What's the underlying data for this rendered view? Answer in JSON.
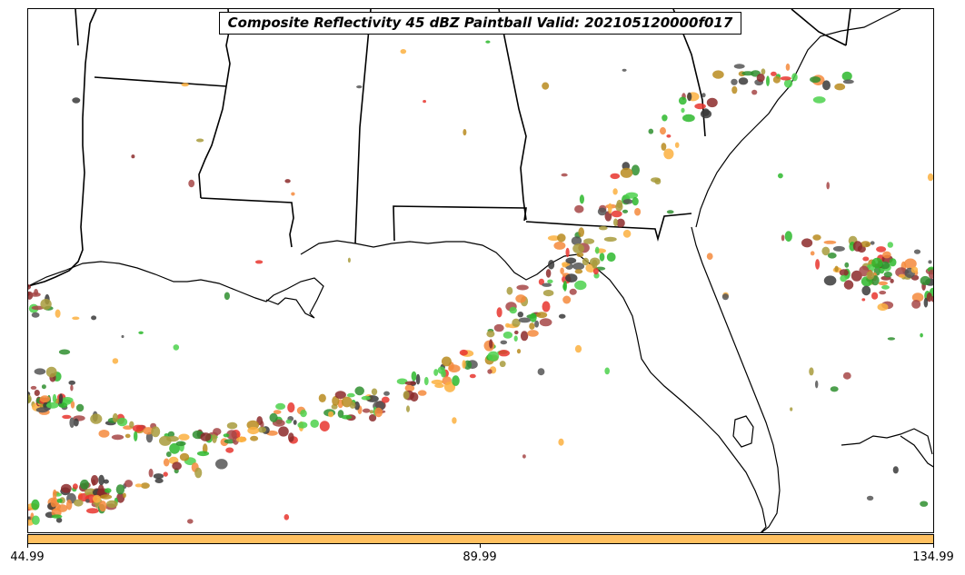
{
  "title": "Composite Reflectivity 45 dBZ Paintball Valid: 202105120000f017",
  "colorbar": {
    "color": "#ffc060",
    "tick_labels": [
      "44.99",
      "89.99",
      "134.99"
    ]
  },
  "ensemble_colors": [
    "#e8352e",
    "#f58a3c",
    "#fbb040",
    "#2db82d",
    "#4cd14c",
    "#2f8f2f",
    "#a89b3c",
    "#b98b1e",
    "#8c2a2a",
    "#a64747",
    "#555555",
    "#3a3a3a"
  ],
  "map_data": {
    "type": "paintball",
    "region": "Gulf Coast / Southeast US",
    "storm_bands": [
      {
        "name": "gulf-squall-band"
      },
      {
        "name": "florida-panhandle-band"
      },
      {
        "name": "southeast-coast-cluster"
      },
      {
        "name": "atlantic-offshore-cluster"
      }
    ]
  }
}
